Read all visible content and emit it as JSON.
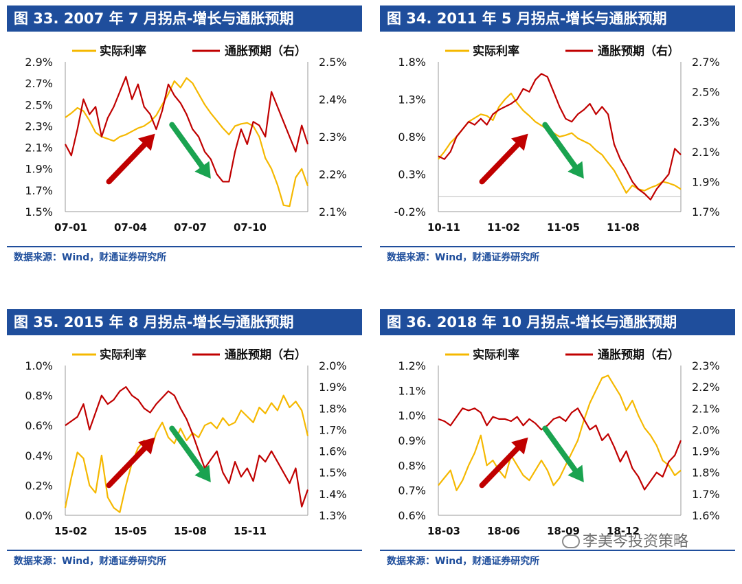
{
  "source": "数据来源：Wind，财通证券研究所",
  "watermark": "李美岑投资策略",
  "chart_data": [
    {
      "type": "line",
      "title": "图 33. 2007 年 7 月拐点-增长与通胀预期",
      "legend": [
        "实际利率",
        "通胀预期（右）"
      ],
      "x_ticks": [
        "07-01",
        "07-04",
        "07-07",
        "07-10"
      ],
      "left_axis": {
        "ticks": [
          "1.5%",
          "1.7%",
          "1.9%",
          "2.1%",
          "2.3%",
          "2.5%",
          "2.7%",
          "2.9%"
        ],
        "range": [
          1.5,
          2.9
        ]
      },
      "right_axis": {
        "ticks": [
          "2.1%",
          "2.2%",
          "2.3%",
          "2.4%",
          "2.5%"
        ],
        "range": [
          2.1,
          2.5
        ]
      },
      "series": [
        {
          "name": "实际利率",
          "color": "#f5b800",
          "values": [
            2.38,
            2.42,
            2.47,
            2.44,
            2.35,
            2.24,
            2.2,
            2.18,
            2.16,
            2.2,
            2.22,
            2.25,
            2.28,
            2.3,
            2.34,
            2.4,
            2.5,
            2.6,
            2.72,
            2.66,
            2.75,
            2.7,
            2.6,
            2.5,
            2.42,
            2.35,
            2.28,
            2.22,
            2.3,
            2.32,
            2.33,
            2.3,
            2.2,
            2.0,
            1.9,
            1.75,
            1.56,
            1.55,
            1.82,
            1.9,
            1.74
          ]
        },
        {
          "name": "通胀预期（右）",
          "color": "#c00000",
          "values": [
            2.28,
            2.25,
            2.32,
            2.4,
            2.36,
            2.38,
            2.3,
            2.35,
            2.38,
            2.42,
            2.46,
            2.4,
            2.44,
            2.38,
            2.36,
            2.32,
            2.37,
            2.44,
            2.41,
            2.39,
            2.36,
            2.32,
            2.3,
            2.26,
            2.24,
            2.2,
            2.18,
            2.18,
            2.26,
            2.32,
            2.28,
            2.34,
            2.33,
            2.3,
            2.42,
            2.38,
            2.34,
            2.3,
            2.26,
            2.33,
            2.28
          ]
        }
      ],
      "arrows": [
        {
          "color": "#c00000",
          "dir": "up"
        },
        {
          "color": "#1aa350",
          "dir": "down"
        }
      ]
    },
    {
      "type": "line",
      "title": "图 34. 2011 年 5 月拐点-增长与通胀预期",
      "legend": [
        "实际利率",
        "通胀预期（右）"
      ],
      "x_ticks": [
        "10-11",
        "11-02",
        "11-05",
        "11-08"
      ],
      "left_axis": {
        "ticks": [
          "-0.2%",
          "0.3%",
          "0.8%",
          "1.3%",
          "1.8%"
        ],
        "range": [
          -0.2,
          1.8
        ]
      },
      "right_axis": {
        "ticks": [
          "1.7%",
          "1.9%",
          "2.1%",
          "2.3%",
          "2.5%",
          "2.7%"
        ],
        "range": [
          1.7,
          2.7
        ]
      },
      "series": [
        {
          "name": "实际利率",
          "color": "#f5b800",
          "values": [
            0.5,
            0.6,
            0.72,
            0.8,
            0.9,
            1.0,
            1.05,
            1.1,
            1.08,
            1.02,
            1.2,
            1.3,
            1.38,
            1.25,
            1.15,
            1.08,
            1.0,
            0.95,
            0.9,
            0.85,
            0.8,
            0.82,
            0.85,
            0.78,
            0.74,
            0.7,
            0.62,
            0.56,
            0.45,
            0.35,
            0.2,
            0.05,
            0.15,
            0.1,
            0.08,
            0.12,
            0.15,
            0.2,
            0.18,
            0.15,
            0.1
          ]
        },
        {
          "name": "通胀预期（右）",
          "color": "#c00000",
          "values": [
            2.07,
            2.05,
            2.1,
            2.2,
            2.25,
            2.3,
            2.28,
            2.32,
            2.28,
            2.35,
            2.38,
            2.4,
            2.42,
            2.45,
            2.52,
            2.5,
            2.58,
            2.62,
            2.6,
            2.5,
            2.4,
            2.32,
            2.3,
            2.35,
            2.38,
            2.42,
            2.35,
            2.4,
            2.35,
            2.15,
            2.05,
            1.98,
            1.9,
            1.85,
            1.82,
            1.78,
            1.85,
            1.9,
            1.95,
            2.12,
            2.08
          ]
        }
      ],
      "arrows": [
        {
          "color": "#c00000",
          "dir": "up"
        },
        {
          "color": "#1aa350",
          "dir": "down"
        }
      ]
    },
    {
      "type": "line",
      "title": "图 35. 2015 年 8 月拐点-增长与通胀预期",
      "legend": [
        "实际利率",
        "通胀预期（右）"
      ],
      "x_ticks": [
        "15-02",
        "15-05",
        "15-08",
        "15-11"
      ],
      "left_axis": {
        "ticks": [
          "0.0%",
          "0.2%",
          "0.4%",
          "0.6%",
          "0.8%",
          "1.0%"
        ],
        "range": [
          0.0,
          1.0
        ]
      },
      "right_axis": {
        "ticks": [
          "1.3%",
          "1.4%",
          "1.5%",
          "1.6%",
          "1.7%",
          "1.8%",
          "1.9%",
          "2.0%"
        ],
        "range": [
          1.3,
          2.0
        ]
      },
      "series": [
        {
          "name": "实际利率",
          "color": "#f5b800",
          "values": [
            0.05,
            0.25,
            0.42,
            0.38,
            0.2,
            0.15,
            0.4,
            0.12,
            0.05,
            0.02,
            0.2,
            0.35,
            0.45,
            0.5,
            0.42,
            0.55,
            0.62,
            0.52,
            0.48,
            0.58,
            0.5,
            0.55,
            0.52,
            0.6,
            0.62,
            0.58,
            0.65,
            0.6,
            0.62,
            0.7,
            0.66,
            0.62,
            0.72,
            0.68,
            0.75,
            0.7,
            0.8,
            0.72,
            0.76,
            0.7,
            0.53
          ]
        },
        {
          "name": "通胀预期（右）",
          "color": "#c00000",
          "values": [
            1.72,
            1.74,
            1.76,
            1.82,
            1.7,
            1.78,
            1.86,
            1.82,
            1.84,
            1.88,
            1.9,
            1.86,
            1.84,
            1.8,
            1.78,
            1.82,
            1.85,
            1.88,
            1.86,
            1.8,
            1.75,
            1.68,
            1.6,
            1.52,
            1.56,
            1.6,
            1.5,
            1.45,
            1.55,
            1.48,
            1.52,
            1.46,
            1.58,
            1.55,
            1.6,
            1.55,
            1.5,
            1.45,
            1.52,
            1.34,
            1.42
          ]
        }
      ],
      "arrows": [
        {
          "color": "#c00000",
          "dir": "up"
        },
        {
          "color": "#1aa350",
          "dir": "down"
        }
      ]
    },
    {
      "type": "line",
      "title": "图 36. 2018 年 10 月拐点-增长与通胀预期",
      "legend": [
        "实际利率",
        "通胀预期（右）"
      ],
      "x_ticks": [
        "18-03",
        "18-06",
        "18-09",
        "18-12"
      ],
      "left_axis": {
        "ticks": [
          "0.6%",
          "0.7%",
          "0.8%",
          "0.9%",
          "1.0%",
          "1.1%",
          "1.2%"
        ],
        "range": [
          0.6,
          1.2
        ]
      },
      "right_axis": {
        "ticks": [
          "1.6%",
          "1.7%",
          "1.8%",
          "1.9%",
          "2.0%",
          "2.1%",
          "2.2%",
          "2.3%"
        ],
        "range": [
          1.6,
          2.3
        ]
      },
      "series": [
        {
          "name": "实际利率",
          "color": "#f5b800",
          "values": [
            0.72,
            0.75,
            0.78,
            0.7,
            0.74,
            0.8,
            0.85,
            0.92,
            0.8,
            0.82,
            0.78,
            0.75,
            0.84,
            0.8,
            0.76,
            0.74,
            0.78,
            0.82,
            0.78,
            0.72,
            0.75,
            0.8,
            0.85,
            0.9,
            0.98,
            1.05,
            1.1,
            1.15,
            1.16,
            1.12,
            1.08,
            1.02,
            1.06,
            1.0,
            0.95,
            0.92,
            0.88,
            0.82,
            0.8,
            0.76,
            0.78
          ]
        },
        {
          "name": "通胀预期（右）",
          "color": "#c00000",
          "values": [
            2.05,
            2.04,
            2.02,
            2.06,
            2.1,
            2.09,
            2.1,
            2.08,
            2.02,
            2.06,
            2.05,
            2.05,
            2.04,
            2.06,
            2.02,
            2.05,
            2.03,
            2.0,
            2.02,
            2.05,
            2.06,
            2.04,
            2.08,
            2.1,
            2.05,
            2.0,
            2.02,
            1.95,
            1.98,
            1.92,
            1.85,
            1.9,
            1.82,
            1.78,
            1.72,
            1.76,
            1.8,
            1.78,
            1.85,
            1.88,
            1.95
          ]
        }
      ],
      "arrows": [
        {
          "color": "#c00000",
          "dir": "up"
        },
        {
          "color": "#1aa350",
          "dir": "down"
        }
      ]
    }
  ]
}
